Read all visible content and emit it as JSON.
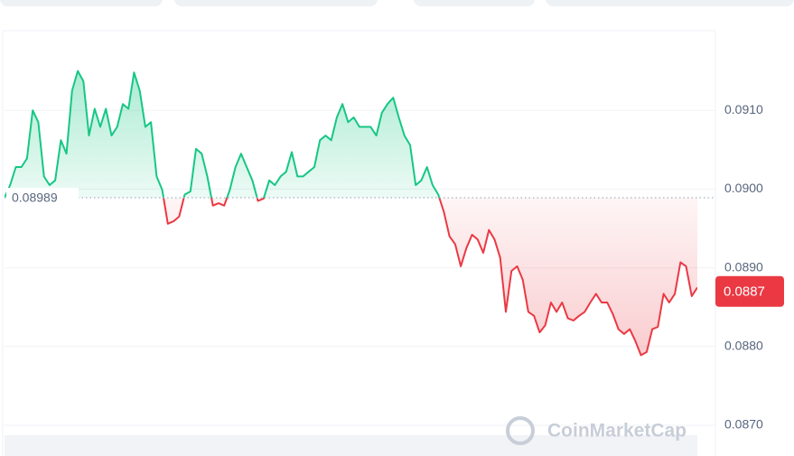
{
  "chart_data": {
    "type": "line",
    "ylim": [
      0.08661,
      0.092
    ],
    "yticks": [
      {
        "value": 0.087,
        "label": "0.0870"
      },
      {
        "value": 0.088,
        "label": "0.0880"
      },
      {
        "value": 0.089,
        "label": "0.0890"
      },
      {
        "value": 0.09,
        "label": "0.0900"
      },
      {
        "value": 0.091,
        "label": "0.0910"
      }
    ],
    "grid": true,
    "baseline": 0.08989,
    "current_price": 0.0887,
    "up_color": "#16c784",
    "down_color": "#ea3943",
    "watermark": "CoinMarketCap",
    "series": [
      {
        "values": [
          0.08989,
          0.09005,
          0.09028,
          0.09028,
          0.09039,
          0.091,
          0.09085,
          0.09016,
          0.09005,
          0.09011,
          0.09062,
          0.09045,
          0.09125,
          0.0915,
          0.09137,
          0.09068,
          0.09102,
          0.09079,
          0.09102,
          0.09068,
          0.09079,
          0.09108,
          0.09102,
          0.09148,
          0.09125,
          0.09079,
          0.09085,
          0.09016,
          0.08999,
          0.08956,
          0.08959,
          0.08965,
          0.08993,
          0.08997,
          0.09051,
          0.09045,
          0.09016,
          0.08979,
          0.08982,
          0.08979,
          0.08999,
          0.09028,
          0.09045,
          0.09028,
          0.09011,
          0.08985,
          0.08988,
          0.09011,
          0.09005,
          0.09016,
          0.09022,
          0.09047,
          0.09016,
          0.09016,
          0.09022,
          0.09028,
          0.09062,
          0.09068,
          0.09062,
          0.09091,
          0.09108,
          0.09085,
          0.09091,
          0.09079,
          0.09079,
          0.09079,
          0.09068,
          0.09097,
          0.09108,
          0.09116,
          0.09091,
          0.09068,
          0.09056,
          0.09005,
          0.09011,
          0.09028,
          0.09005,
          0.08993,
          0.08971,
          0.0894,
          0.0893,
          0.08902,
          0.08925,
          0.08942,
          0.08936,
          0.08919,
          0.08948,
          0.08936,
          0.08913,
          0.08844,
          0.08896,
          0.08902,
          0.08885,
          0.08844,
          0.08839,
          0.08818,
          0.08827,
          0.08856,
          0.08844,
          0.08856,
          0.08836,
          0.08833,
          0.08839,
          0.08844,
          0.08856,
          0.08867,
          0.08856,
          0.08856,
          0.08841,
          0.08822,
          0.08816,
          0.08822,
          0.08807,
          0.08789,
          0.08793,
          0.08822,
          0.08825,
          0.08867,
          0.08856,
          0.08867,
          0.08907,
          0.08902,
          0.08864,
          0.08875
        ]
      }
    ]
  }
}
